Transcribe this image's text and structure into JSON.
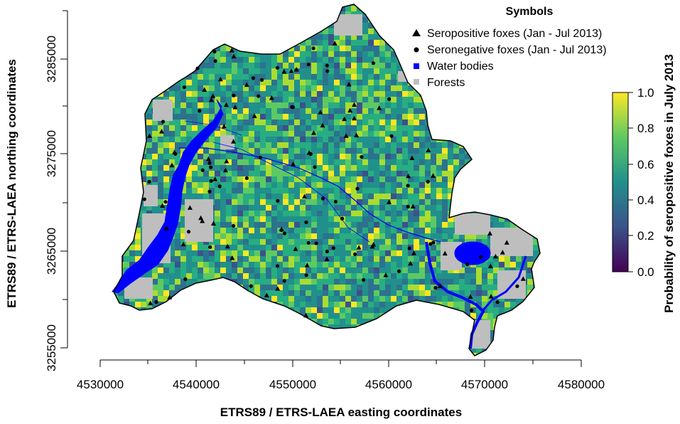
{
  "map": {
    "xlabel": "ETRS89 / ETRS-LAEA easting coordinates",
    "ylabel": "ETRS89 / ETRS-LAEA northing coordinates",
    "x_ticks": [
      "4530000",
      "4540000",
      "4550000",
      "4560000",
      "4570000",
      "4580000"
    ],
    "y_ticks": [
      "3255000",
      "3265000",
      "3275000",
      "3285000"
    ]
  },
  "legend": {
    "title": "Symbols",
    "items": [
      {
        "label": "Seropositive foxes (Jan - Jul 2013)",
        "symbol": "triangle",
        "color": "#000000"
      },
      {
        "label": "Seronegative foxes  (Jan - Jul 2013)",
        "symbol": "circle",
        "color": "#000000"
      },
      {
        "label": "Water bodies",
        "symbol": "square",
        "color": "#0000ff"
      },
      {
        "label": "Forests",
        "symbol": "square",
        "color": "#bebebe"
      }
    ]
  },
  "colorbar": {
    "title": "Probability of seropositive foxes in July 2013",
    "ticks": [
      "0.0",
      "0.2",
      "0.4",
      "0.6",
      "0.8",
      "1.0"
    ],
    "colors": [
      "#440154",
      "#3b528b",
      "#21908c",
      "#5dc963",
      "#fde725"
    ]
  }
}
